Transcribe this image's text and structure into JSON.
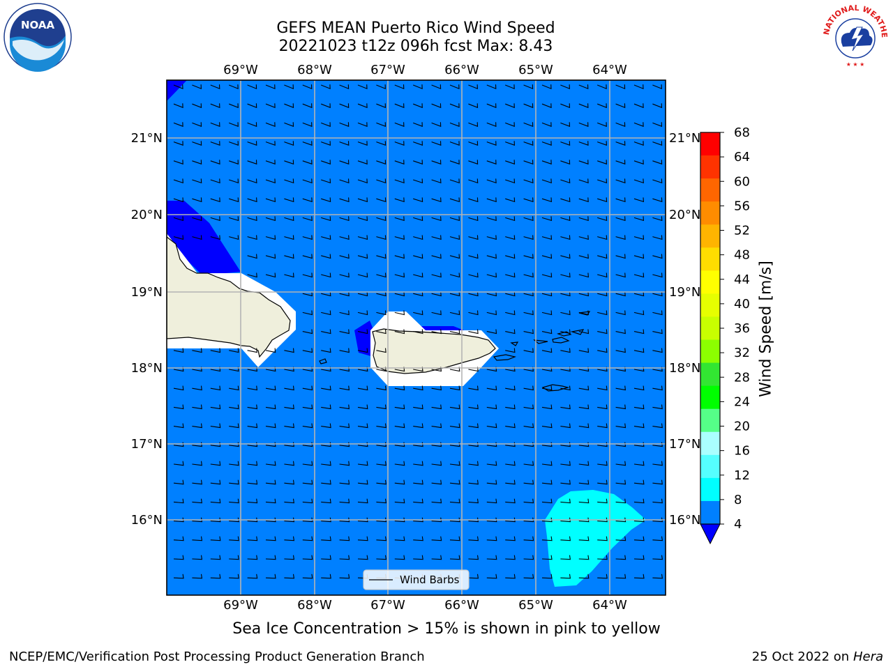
{
  "title": {
    "line1": "GEFS MEAN Puerto Rico Wind Speed",
    "line2": "20221023 t12z 096h fcst   Max: 8.43"
  },
  "caption": "Sea Ice Concentration > 15% is shown in pink to yellow",
  "footer": {
    "left": "NCEP/EMC/Verification Post Processing Product Generation Branch",
    "right_prefix": "25 Oct 2022 on ",
    "right_host": "Hera"
  },
  "logos": {
    "left": {
      "name": "noaa-logo",
      "text": "NOAA"
    },
    "right": {
      "name": "nws-logo",
      "text": "NATIONAL WEATHER SERVICE"
    }
  },
  "map": {
    "lon_ticks": [
      "69°W",
      "68°W",
      "67°W",
      "66°W",
      "65°W",
      "64°W"
    ],
    "lat_ticks": [
      "21°N",
      "20°N",
      "19°N",
      "18°N",
      "17°N",
      "16°N"
    ],
    "legend_label": "Wind Barbs",
    "colors": {
      "ocean_field": "#0080ff",
      "low_wind": "#0000ff",
      "high_wind": "#00ffff",
      "land": "#efefdc",
      "grid": "#b4b4b4"
    }
  },
  "colorbar": {
    "label": "Wind Speed [m/s]",
    "ticks": [
      "68",
      "64",
      "60",
      "56",
      "52",
      "48",
      "44",
      "40",
      "36",
      "32",
      "28",
      "24",
      "20",
      "16",
      "12",
      "8",
      "4"
    ],
    "colors": [
      "#ff0000",
      "#ff3300",
      "#ff6600",
      "#ff8c00",
      "#ffb400",
      "#ffdd00",
      "#ffff00",
      "#e6ff00",
      "#c8ff00",
      "#8cff00",
      "#32e632",
      "#00ff00",
      "#55ff88",
      "#aaffff",
      "#55ffff",
      "#00ffff",
      "#0080ff"
    ],
    "extend_color": "#0000ff"
  }
}
